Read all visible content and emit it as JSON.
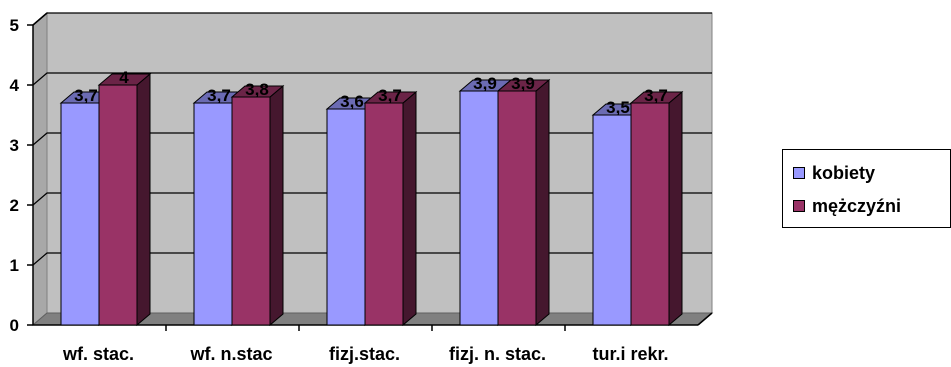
{
  "chart_data": {
    "type": "bar",
    "categories": [
      "wf. stac.",
      "wf. n.stac",
      "fizj.stac.",
      "fizj. n. stac.",
      "tur.i rekr."
    ],
    "series": [
      {
        "name": "kobiety",
        "values": [
          3.7,
          3.7,
          3.6,
          3.9,
          3.5
        ],
        "labels": [
          "3,7",
          "3,7",
          "3,6",
          "3,9",
          "3,5"
        ],
        "color": "#9999ff"
      },
      {
        "name": "mężczyźni",
        "values": [
          4,
          3.8,
          3.7,
          3.9,
          3.7
        ],
        "labels": [
          "4",
          "3,8",
          "3,7",
          "3,9",
          "3,7"
        ],
        "color": "#993366"
      }
    ],
    "ylim": [
      0,
      5
    ],
    "yticks": [
      "0",
      "1",
      "2",
      "3",
      "4",
      "5"
    ],
    "grid": true,
    "legend_position": "right",
    "background_color": "#c0c0c0"
  }
}
